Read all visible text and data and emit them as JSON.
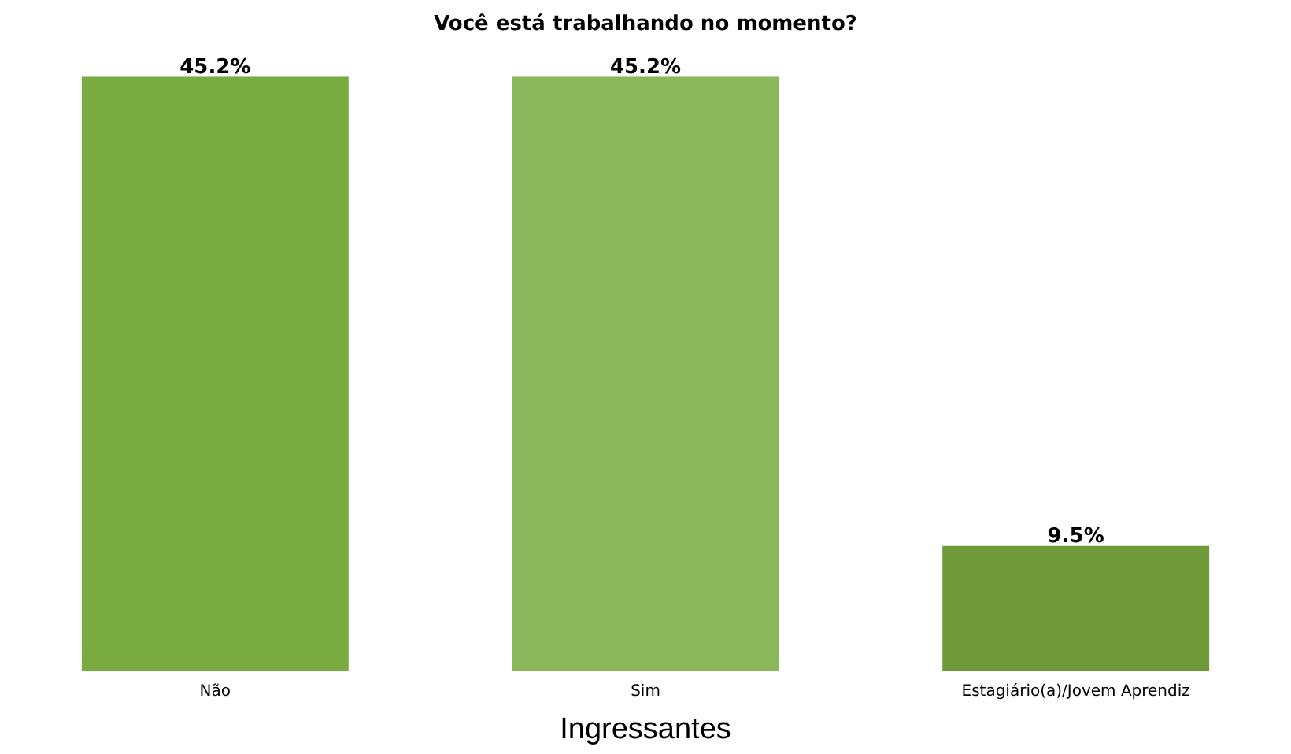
{
  "chart_data": {
    "type": "bar",
    "title": "Você está trabalhando no momento?",
    "xlabel": "Ingressantes",
    "categories": [
      "Não",
      "Sim",
      "Estagiário(a)/Jovem Aprendiz"
    ],
    "values": [
      45.2,
      45.2,
      9.5
    ],
    "colors": [
      "#7aab40",
      "#8cb85c",
      "#6f9a39"
    ],
    "data_labels": true,
    "value_labels": [
      "45.2%",
      "45.2%",
      "9.5%"
    ],
    "grid": false,
    "legend": false
  }
}
